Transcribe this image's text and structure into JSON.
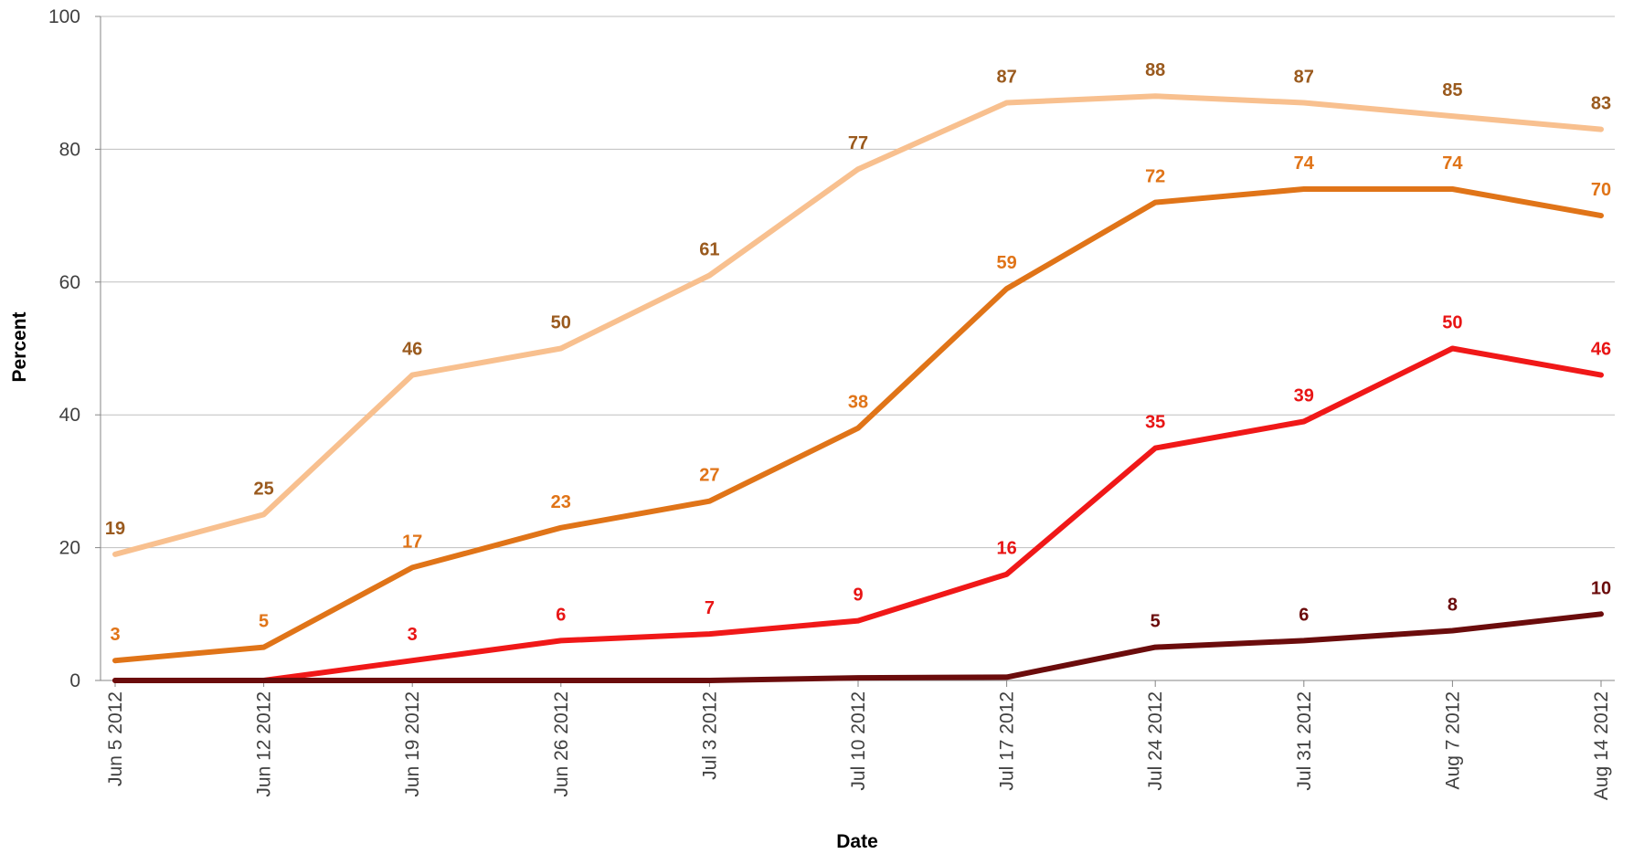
{
  "chart_data": {
    "type": "line",
    "xlabel": "Date",
    "ylabel": "Percent",
    "ylim": [
      0,
      100
    ],
    "yticks": [
      0,
      20,
      40,
      60,
      80,
      100
    ],
    "grid": true,
    "categories": [
      "Jun 5 2012",
      "Jun 12 2012",
      "Jun 19 2012",
      "Jun 26 2012",
      "Jul 3 2012",
      "Jul 10 2012",
      "Jul 17 2012",
      "Jul 24 2012",
      "Jul 31 2012",
      "Aug 7 2012",
      "Aug 14 2012"
    ],
    "series": [
      {
        "color": "#f8c08f",
        "label_color": "#9a5a1e",
        "values": [
          19,
          25,
          46,
          50,
          61,
          77,
          87,
          88,
          87,
          85,
          83
        ],
        "labels": [
          "19",
          "25",
          "46",
          "50",
          "61",
          "77",
          "87",
          "88",
          "87",
          "85",
          "83"
        ]
      },
      {
        "color": "#e07418",
        "label_color": "#e07418",
        "values": [
          3,
          5,
          17,
          23,
          27,
          38,
          59,
          72,
          74,
          74,
          70
        ],
        "labels": [
          "3",
          "5",
          "17",
          "23",
          "27",
          "38",
          "59",
          "72",
          "74",
          "74",
          "70"
        ]
      },
      {
        "color": "#f01818",
        "label_color": "#e81515",
        "values": [
          0,
          0,
          3,
          6,
          7,
          9,
          16,
          35,
          39,
          50,
          46
        ],
        "labels": [
          "",
          "",
          "3",
          "6",
          "7",
          "9",
          "16",
          "35",
          "39",
          "50",
          "46"
        ]
      },
      {
        "color": "#6b0c0c",
        "label_color": "#6b0c0c",
        "values": [
          0,
          0,
          0,
          0,
          0,
          0.4,
          0.5,
          5,
          6,
          7.5,
          10
        ],
        "labels": [
          "",
          "",
          "",
          "",
          "",
          "",
          "",
          "5",
          "6",
          "8",
          "10"
        ]
      }
    ]
  }
}
